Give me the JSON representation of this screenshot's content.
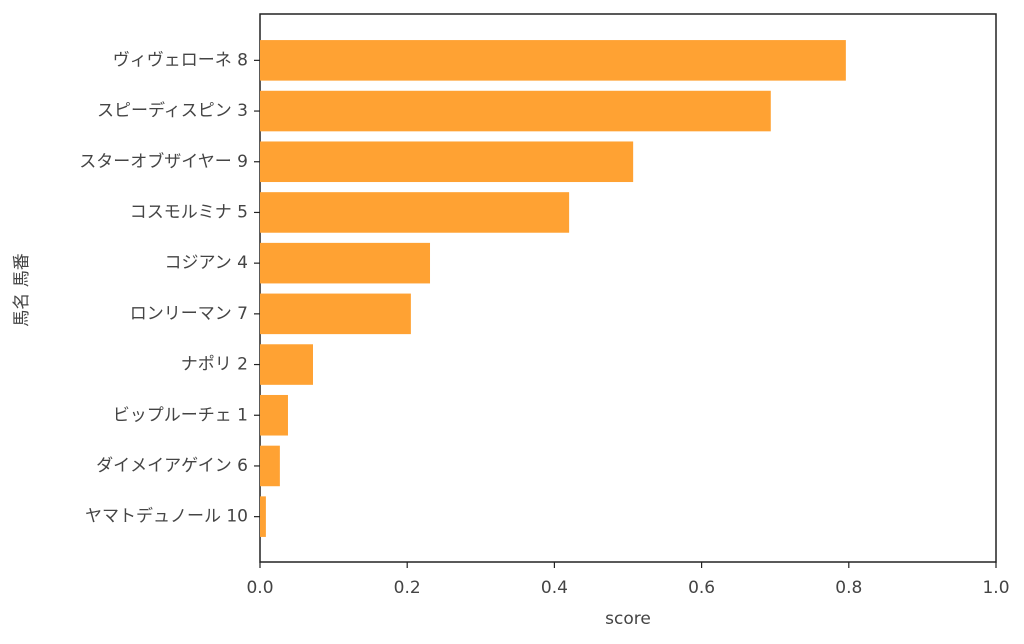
{
  "chart_data": {
    "type": "bar",
    "orientation": "horizontal",
    "xlabel": "score",
    "ylabel": "馬名 馬番",
    "categories": [
      "ヴィヴェローネ 8",
      "スピーディスピン 3",
      "スターオブザイヤー 9",
      "コスモルミナ 5",
      "コジアン 4",
      "ロンリーマン 7",
      "ナポリ 2",
      "ビップルーチェ 1",
      "ダイメイアゲイン 6",
      "ヤマトデュノール 10"
    ],
    "values": [
      0.796,
      0.694,
      0.507,
      0.42,
      0.231,
      0.205,
      0.072,
      0.038,
      0.027,
      0.008
    ],
    "color": "#ffa233",
    "xlim": [
      0,
      1
    ],
    "xticks": [
      {
        "value": 0,
        "label": "0.0"
      },
      0.2,
      0.4,
      0.6,
      0.8,
      {
        "value": 1,
        "label": "1.0"
      }
    ],
    "grid": false
  }
}
